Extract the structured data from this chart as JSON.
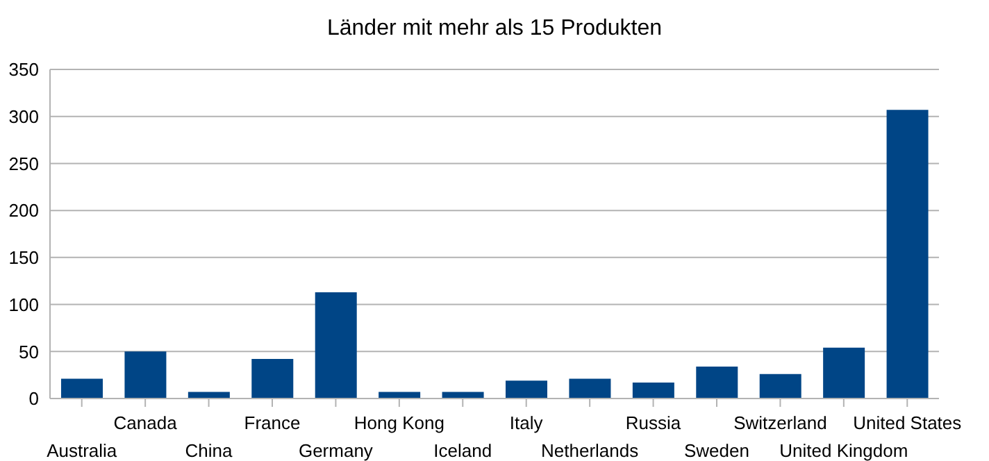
{
  "chart_data": {
    "type": "bar",
    "title": "Länder mit mehr als 15 Produkten",
    "categories": [
      "Australia",
      "Canada",
      "China",
      "France",
      "Germany",
      "Hong Kong",
      "Iceland",
      "Italy",
      "Netherlands",
      "Russia",
      "Sweden",
      "Switzerland",
      "United Kingdom",
      "United States"
    ],
    "values": [
      21,
      50,
      7,
      42,
      113,
      7,
      7,
      19,
      21,
      17,
      34,
      26,
      54,
      307
    ],
    "color": "#004586",
    "ylim": [
      0,
      350
    ],
    "yticks": [
      0,
      50,
      100,
      150,
      200,
      250,
      300,
      350
    ],
    "grid": "y",
    "legend": false
  }
}
